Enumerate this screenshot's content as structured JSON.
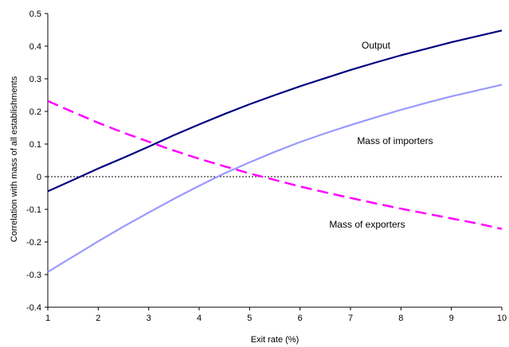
{
  "chart_data": {
    "type": "line",
    "xlabel": "Exit rate (%)",
    "ylabel": "Correlation with mass of all establishments",
    "xlim": [
      1,
      10
    ],
    "ylim": [
      -0.4,
      0.5
    ],
    "x_ticks": [
      "1",
      "2",
      "3",
      "4",
      "5",
      "6",
      "7",
      "8",
      "9",
      "10"
    ],
    "y_ticks": [
      "0.5",
      "0.4",
      "0.3",
      "0.2",
      "0.1",
      "0",
      "-0.1",
      "-0.2",
      "-0.3",
      "-0.4"
    ],
    "zero_line": true,
    "grid": false,
    "legend": "none",
    "series": [
      {
        "name": "Output",
        "color": "#000080",
        "style": "solid",
        "x": [
          1,
          1.5,
          2,
          2.5,
          3,
          3.5,
          4,
          4.5,
          5,
          5.5,
          6,
          6.5,
          7,
          7.5,
          8,
          8.5,
          9,
          9.5,
          10
        ],
        "values": [
          -0.045,
          -0.01,
          0.025,
          0.058,
          0.092,
          0.127,
          0.16,
          0.192,
          0.222,
          0.25,
          0.277,
          0.302,
          0.327,
          0.35,
          0.372,
          0.392,
          0.412,
          0.43,
          0.448
        ]
      },
      {
        "name": "Mass of importers",
        "color": "#9999ff",
        "style": "solid",
        "x": [
          1,
          1.5,
          2,
          2.5,
          3,
          3.5,
          4,
          4.5,
          5,
          5.5,
          6,
          6.5,
          7,
          7.5,
          8,
          8.5,
          9,
          9.5,
          10
        ],
        "values": [
          -0.292,
          -0.245,
          -0.198,
          -0.153,
          -0.11,
          -0.068,
          -0.028,
          0.01,
          0.044,
          0.076,
          0.106,
          0.133,
          0.158,
          0.182,
          0.205,
          0.226,
          0.246,
          0.264,
          0.282
        ]
      },
      {
        "name": "Mass of exporters",
        "color": "#ff00ff",
        "style": "dashed",
        "x": [
          1,
          1.5,
          2,
          2.5,
          3,
          3.5,
          4,
          4.5,
          5,
          5.5,
          6,
          6.5,
          7,
          7.5,
          8,
          8.5,
          9,
          9.5,
          10
        ],
        "values": [
          0.232,
          0.198,
          0.165,
          0.135,
          0.107,
          0.08,
          0.055,
          0.032,
          0.01,
          -0.01,
          -0.03,
          -0.048,
          -0.065,
          -0.082,
          -0.098,
          -0.113,
          -0.128,
          -0.143,
          -0.16
        ]
      }
    ]
  }
}
